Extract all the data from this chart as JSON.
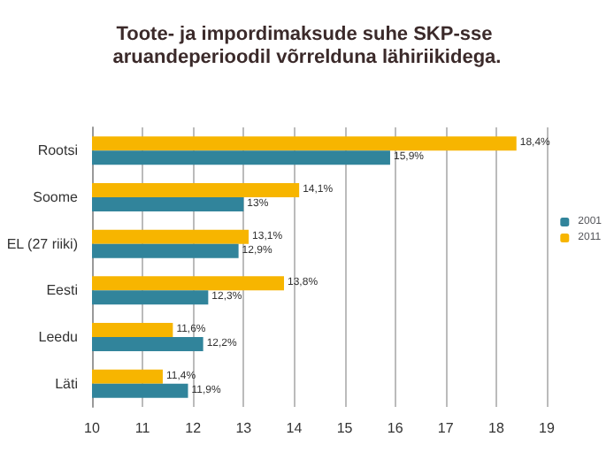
{
  "chart_data": {
    "type": "bar",
    "orientation": "horizontal",
    "title": "Toote- ja impordimaksude suhe SKP-sse aruandeperioodil võrrelduna lähiriikidega.",
    "categories": [
      "Rootsi",
      "Soome",
      "EL (27 riiki)",
      "Eesti",
      "Leedu",
      "Läti"
    ],
    "series": [
      {
        "name": "2001",
        "color": "#31849b",
        "values": [
          15.9,
          13,
          12.9,
          12.3,
          12.2,
          11.9
        ],
        "value_labels": [
          "15,9%",
          "13%",
          "12,9%",
          "12,3%",
          "12,2%",
          "11,9%"
        ]
      },
      {
        "name": "2011",
        "color": "#f7b500",
        "values": [
          18.4,
          14.1,
          13.1,
          13.8,
          11.6,
          11.4
        ],
        "value_labels": [
          "18,4%",
          "14,1%",
          "13,1%",
          "13,8%",
          "11,6%",
          "11,4%"
        ]
      }
    ],
    "xlim": [
      10,
      19
    ],
    "xticks": [
      10,
      11,
      12,
      13,
      14,
      15,
      16,
      17,
      18,
      19
    ],
    "grid": "x",
    "legend": "right"
  }
}
